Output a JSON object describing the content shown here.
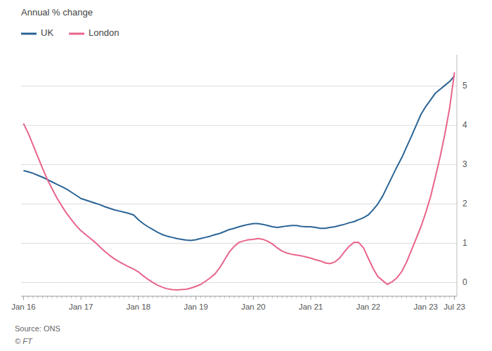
{
  "chart_data": {
    "type": "line",
    "y_label": "Annual % change",
    "annotations": [
      "Source: ONS",
      "© FT"
    ],
    "categories": [
      "Jan 16",
      null,
      null,
      null,
      null,
      null,
      null,
      null,
      null,
      null,
      null,
      null,
      "Jan 17",
      null,
      null,
      null,
      null,
      null,
      null,
      null,
      null,
      null,
      null,
      null,
      "Jan 18",
      null,
      null,
      null,
      null,
      null,
      null,
      null,
      null,
      null,
      null,
      null,
      "Jan 19",
      null,
      null,
      null,
      null,
      null,
      null,
      null,
      null,
      null,
      null,
      null,
      "Jan 20",
      null,
      null,
      null,
      null,
      null,
      null,
      null,
      null,
      null,
      null,
      null,
      "Jan 21",
      null,
      null,
      null,
      null,
      null,
      null,
      null,
      null,
      null,
      null,
      null,
      "Jan 22",
      null,
      null,
      null,
      null,
      null,
      null,
      null,
      null,
      null,
      null,
      null,
      "Jan 23",
      null,
      null,
      null,
      null,
      null,
      "Jul 23"
    ],
    "series": [
      {
        "name": "UK",
        "color": "#2a6496",
        "values": [
          2.85,
          2.82,
          2.78,
          2.73,
          2.68,
          2.62,
          2.56,
          2.5,
          2.44,
          2.38,
          2.3,
          2.22,
          2.14,
          2.1,
          2.06,
          2.02,
          1.98,
          1.93,
          1.89,
          1.85,
          1.82,
          1.79,
          1.76,
          1.72,
          1.6,
          1.5,
          1.42,
          1.35,
          1.28,
          1.22,
          1.18,
          1.15,
          1.12,
          1.1,
          1.08,
          1.07,
          1.09,
          1.12,
          1.15,
          1.18,
          1.22,
          1.25,
          1.3,
          1.35,
          1.38,
          1.42,
          1.45,
          1.48,
          1.5,
          1.5,
          1.48,
          1.45,
          1.42,
          1.4,
          1.42,
          1.44,
          1.45,
          1.45,
          1.43,
          1.42,
          1.42,
          1.4,
          1.38,
          1.38,
          1.4,
          1.42,
          1.45,
          1.48,
          1.52,
          1.55,
          1.6,
          1.65,
          1.72,
          1.85,
          2.0,
          2.2,
          2.45,
          2.7,
          2.95,
          3.18,
          3.45,
          3.72,
          4.0,
          4.28,
          4.48,
          4.65,
          4.82,
          4.92,
          5.02,
          5.12,
          5.26
        ]
      },
      {
        "name": "London",
        "color": "#e8648a",
        "values": [
          4.05,
          3.8,
          3.5,
          3.2,
          2.9,
          2.62,
          2.38,
          2.15,
          1.95,
          1.76,
          1.6,
          1.45,
          1.32,
          1.22,
          1.12,
          1.02,
          0.9,
          0.79,
          0.69,
          0.6,
          0.53,
          0.46,
          0.4,
          0.34,
          0.27,
          0.17,
          0.08,
          0.0,
          -0.07,
          -0.12,
          -0.16,
          -0.18,
          -0.19,
          -0.18,
          -0.17,
          -0.14,
          -0.1,
          -0.05,
          0.03,
          0.12,
          0.22,
          0.38,
          0.58,
          0.78,
          0.92,
          1.02,
          1.06,
          1.09,
          1.1,
          1.12,
          1.1,
          1.05,
          0.98,
          0.88,
          0.8,
          0.75,
          0.72,
          0.7,
          0.68,
          0.65,
          0.62,
          0.58,
          0.55,
          0.5,
          0.48,
          0.52,
          0.62,
          0.78,
          0.92,
          1.02,
          1.02,
          0.88,
          0.62,
          0.36,
          0.15,
          0.05,
          -0.05,
          0.02,
          0.12,
          0.28,
          0.52,
          0.82,
          1.12,
          1.42,
          1.78,
          2.18,
          2.68,
          3.2,
          3.78,
          4.45,
          5.35
        ]
      }
    ],
    "ylim": [
      -0.35,
      5.8
    ],
    "yticks": [
      0,
      1,
      2,
      3,
      4,
      5
    ],
    "grid": true,
    "legend": "upper left"
  }
}
